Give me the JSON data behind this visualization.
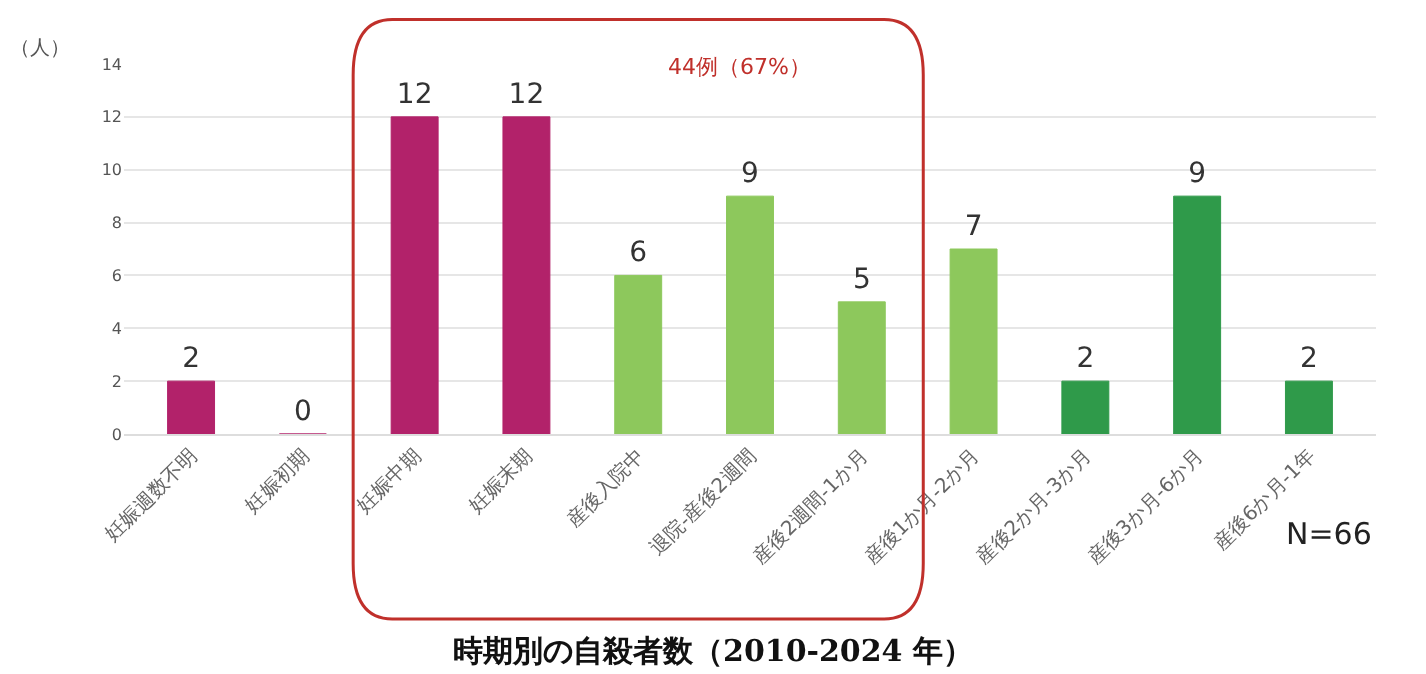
{
  "chart_data": {
    "type": "bar",
    "title": "時期別の自殺者数（2010-2024 年）",
    "ylabel": "（人）",
    "categories": [
      "妊娠週数不明",
      "妊娠初期",
      "妊娠中期",
      "妊娠末期",
      "産後入院中",
      "退院-産後2週間",
      "産後2週間-1か月",
      "産後1か月-2か月",
      "産後2か月-3か月",
      "産後3か月-6か月",
      "産後6か月-1年"
    ],
    "values": [
      2,
      0,
      12,
      12,
      6,
      9,
      5,
      7,
      2,
      9,
      2
    ],
    "colors": [
      "#b2226a",
      "#b2226a",
      "#b2226a",
      "#b2226a",
      "#8dc85c",
      "#8dc85c",
      "#8dc85c",
      "#8dc85c",
      "#2f9a4a",
      "#2f9a4a",
      "#2f9a4a"
    ],
    "ylim": [
      0,
      14
    ],
    "yticks": [
      0,
      2,
      4,
      6,
      8,
      10,
      12,
      14
    ],
    "grid": "y",
    "data_labels": true,
    "annotations": [
      "44例（67%）",
      "N=66"
    ]
  }
}
